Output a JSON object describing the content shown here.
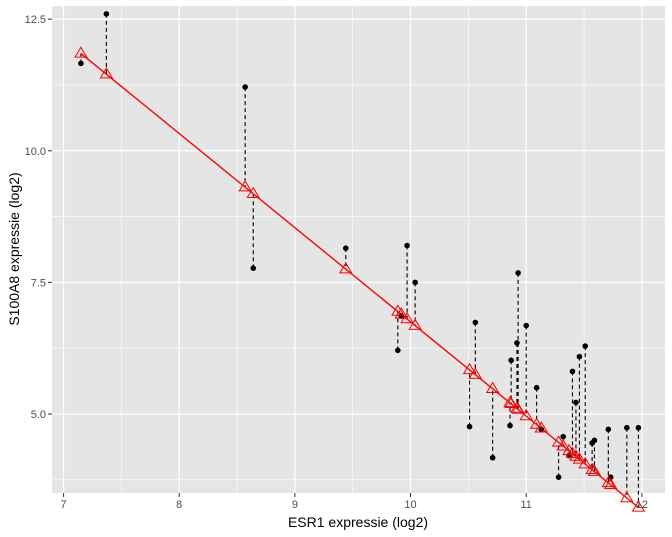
{
  "chart_data": {
    "type": "scatter",
    "xlabel": "ESR1 expressie (log2)",
    "ylabel": "S100A8 expressie (log2)",
    "xlim": [
      6.9,
      12.2
    ],
    "ylim": [
      3.5,
      12.75
    ],
    "x_ticks": [
      7,
      8,
      9,
      10,
      11,
      12
    ],
    "y_ticks": [
      5.0,
      7.5,
      10.0,
      12.5
    ],
    "x_tick_labels": [
      "7",
      "8",
      "9",
      "10",
      "11",
      "12"
    ],
    "y_tick_labels": [
      "5.0",
      "7.5",
      "10.0",
      "12.5"
    ],
    "grid": true,
    "background": "#e5e5e5",
    "grid_color": "#ffffff",
    "fit_line": {
      "intercept": 24.64,
      "slope": -1.789,
      "color": "#ff0000"
    },
    "observed_color": "#000000",
    "fitted_marker": "triangle-open",
    "fitted_color": "#ff0000",
    "residual_style": "dashed",
    "points": [
      {
        "x": 7.15,
        "y": 11.66
      },
      {
        "x": 7.37,
        "y": 12.6
      },
      {
        "x": 8.57,
        "y": 11.21
      },
      {
        "x": 8.64,
        "y": 7.77
      },
      {
        "x": 9.44,
        "y": 8.15
      },
      {
        "x": 9.89,
        "y": 6.21
      },
      {
        "x": 9.92,
        "y": 6.86
      },
      {
        "x": 9.97,
        "y": 8.2
      },
      {
        "x": 10.04,
        "y": 7.5
      },
      {
        "x": 10.51,
        "y": 4.76
      },
      {
        "x": 10.56,
        "y": 6.74
      },
      {
        "x": 10.71,
        "y": 4.17
      },
      {
        "x": 10.86,
        "y": 4.78
      },
      {
        "x": 10.87,
        "y": 6.02
      },
      {
        "x": 10.92,
        "y": 6.35
      },
      {
        "x": 10.93,
        "y": 7.68
      },
      {
        "x": 11.0,
        "y": 6.68
      },
      {
        "x": 11.09,
        "y": 5.5
      },
      {
        "x": 11.13,
        "y": 4.71
      },
      {
        "x": 11.28,
        "y": 3.8
      },
      {
        "x": 11.32,
        "y": 4.57
      },
      {
        "x": 11.37,
        "y": 4.21
      },
      {
        "x": 11.4,
        "y": 5.81
      },
      {
        "x": 11.43,
        "y": 5.22
      },
      {
        "x": 11.46,
        "y": 6.09
      },
      {
        "x": 11.51,
        "y": 6.29
      },
      {
        "x": 11.57,
        "y": 4.45
      },
      {
        "x": 11.59,
        "y": 4.5
      },
      {
        "x": 11.71,
        "y": 4.71
      },
      {
        "x": 11.73,
        "y": 3.8
      },
      {
        "x": 11.87,
        "y": 4.74
      },
      {
        "x": 11.97,
        "y": 4.74
      }
    ]
  }
}
